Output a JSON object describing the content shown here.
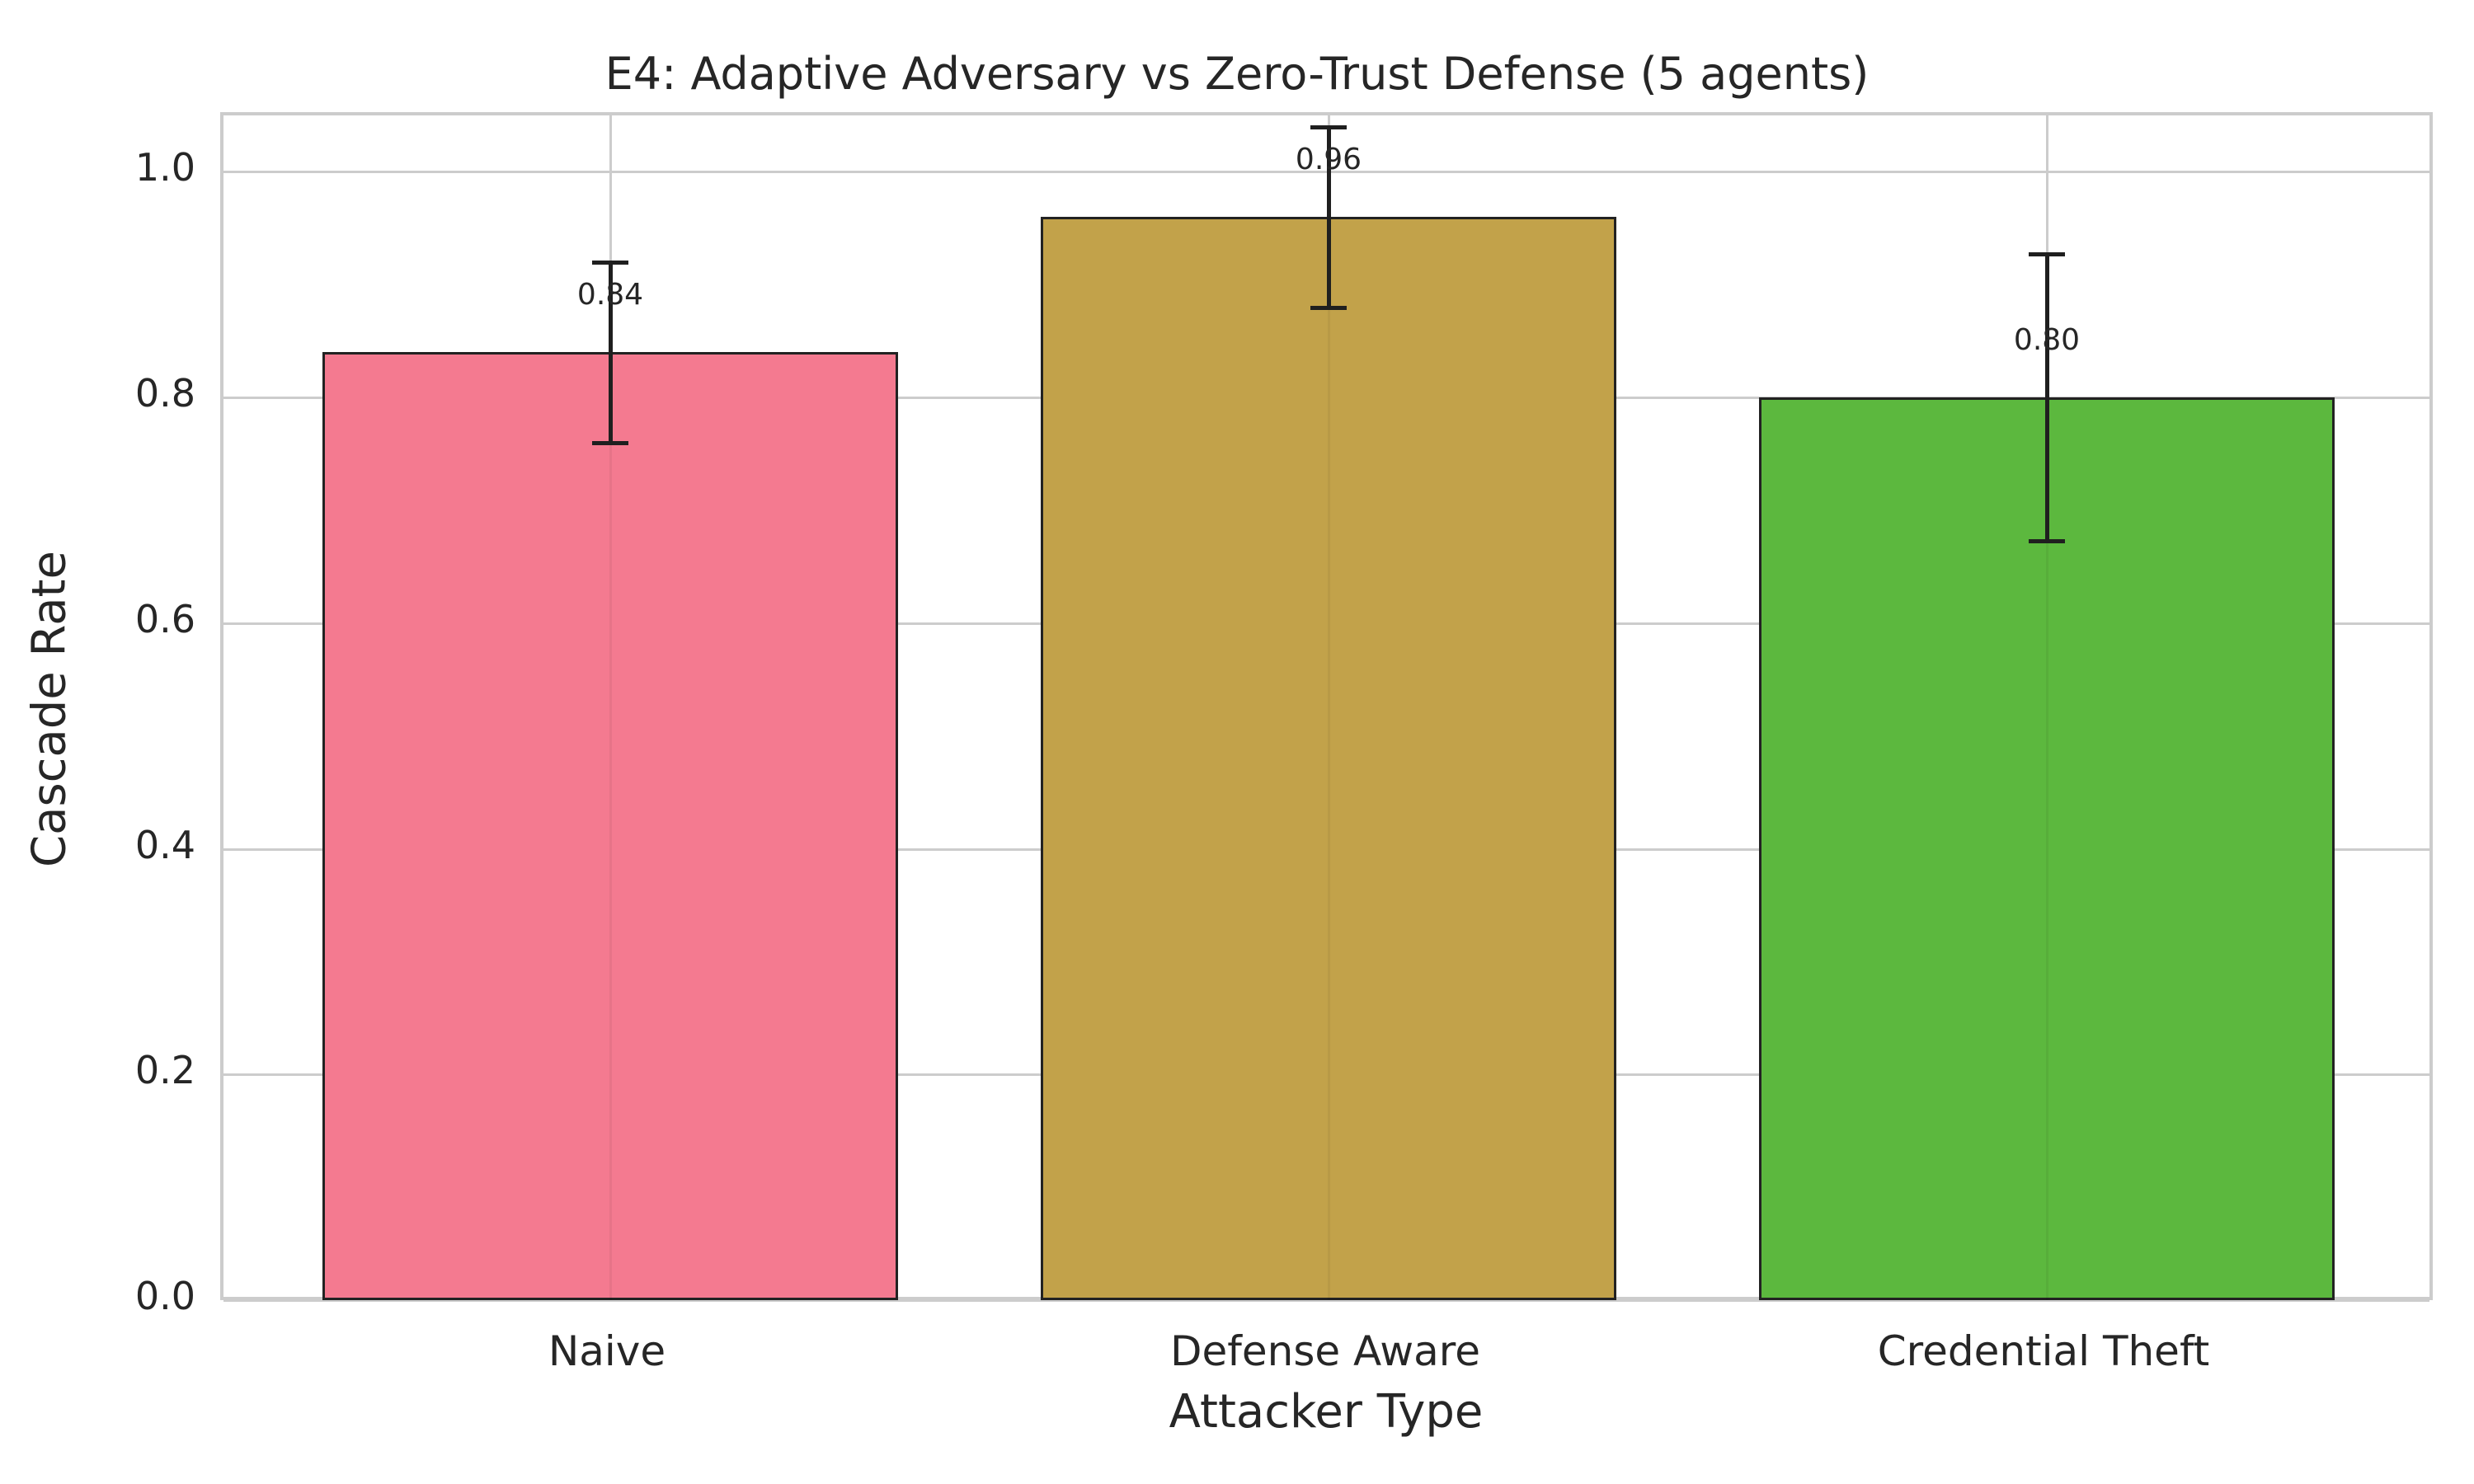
{
  "chart_data": {
    "type": "bar",
    "title": "E4: Adaptive Adversary vs Zero-Trust Defense (5 agents)",
    "xlabel": "Attacker Type",
    "ylabel": "Cascade Rate",
    "categories": [
      "Naive",
      "Defense Aware",
      "Credential Theft"
    ],
    "values": [
      0.84,
      0.96,
      0.8
    ],
    "error": [
      0.08,
      0.08,
      0.127
    ],
    "value_labels": [
      "0.84",
      "0.96",
      "0.80"
    ],
    "colors": [
      "#f47a90",
      "#c2a24a",
      "#5cb83e"
    ],
    "ylim": [
      0.0,
      1.05
    ],
    "yticks": [
      "0.0",
      "0.2",
      "0.4",
      "0.6",
      "0.8",
      "1.0"
    ],
    "grid": true,
    "legend": null
  }
}
